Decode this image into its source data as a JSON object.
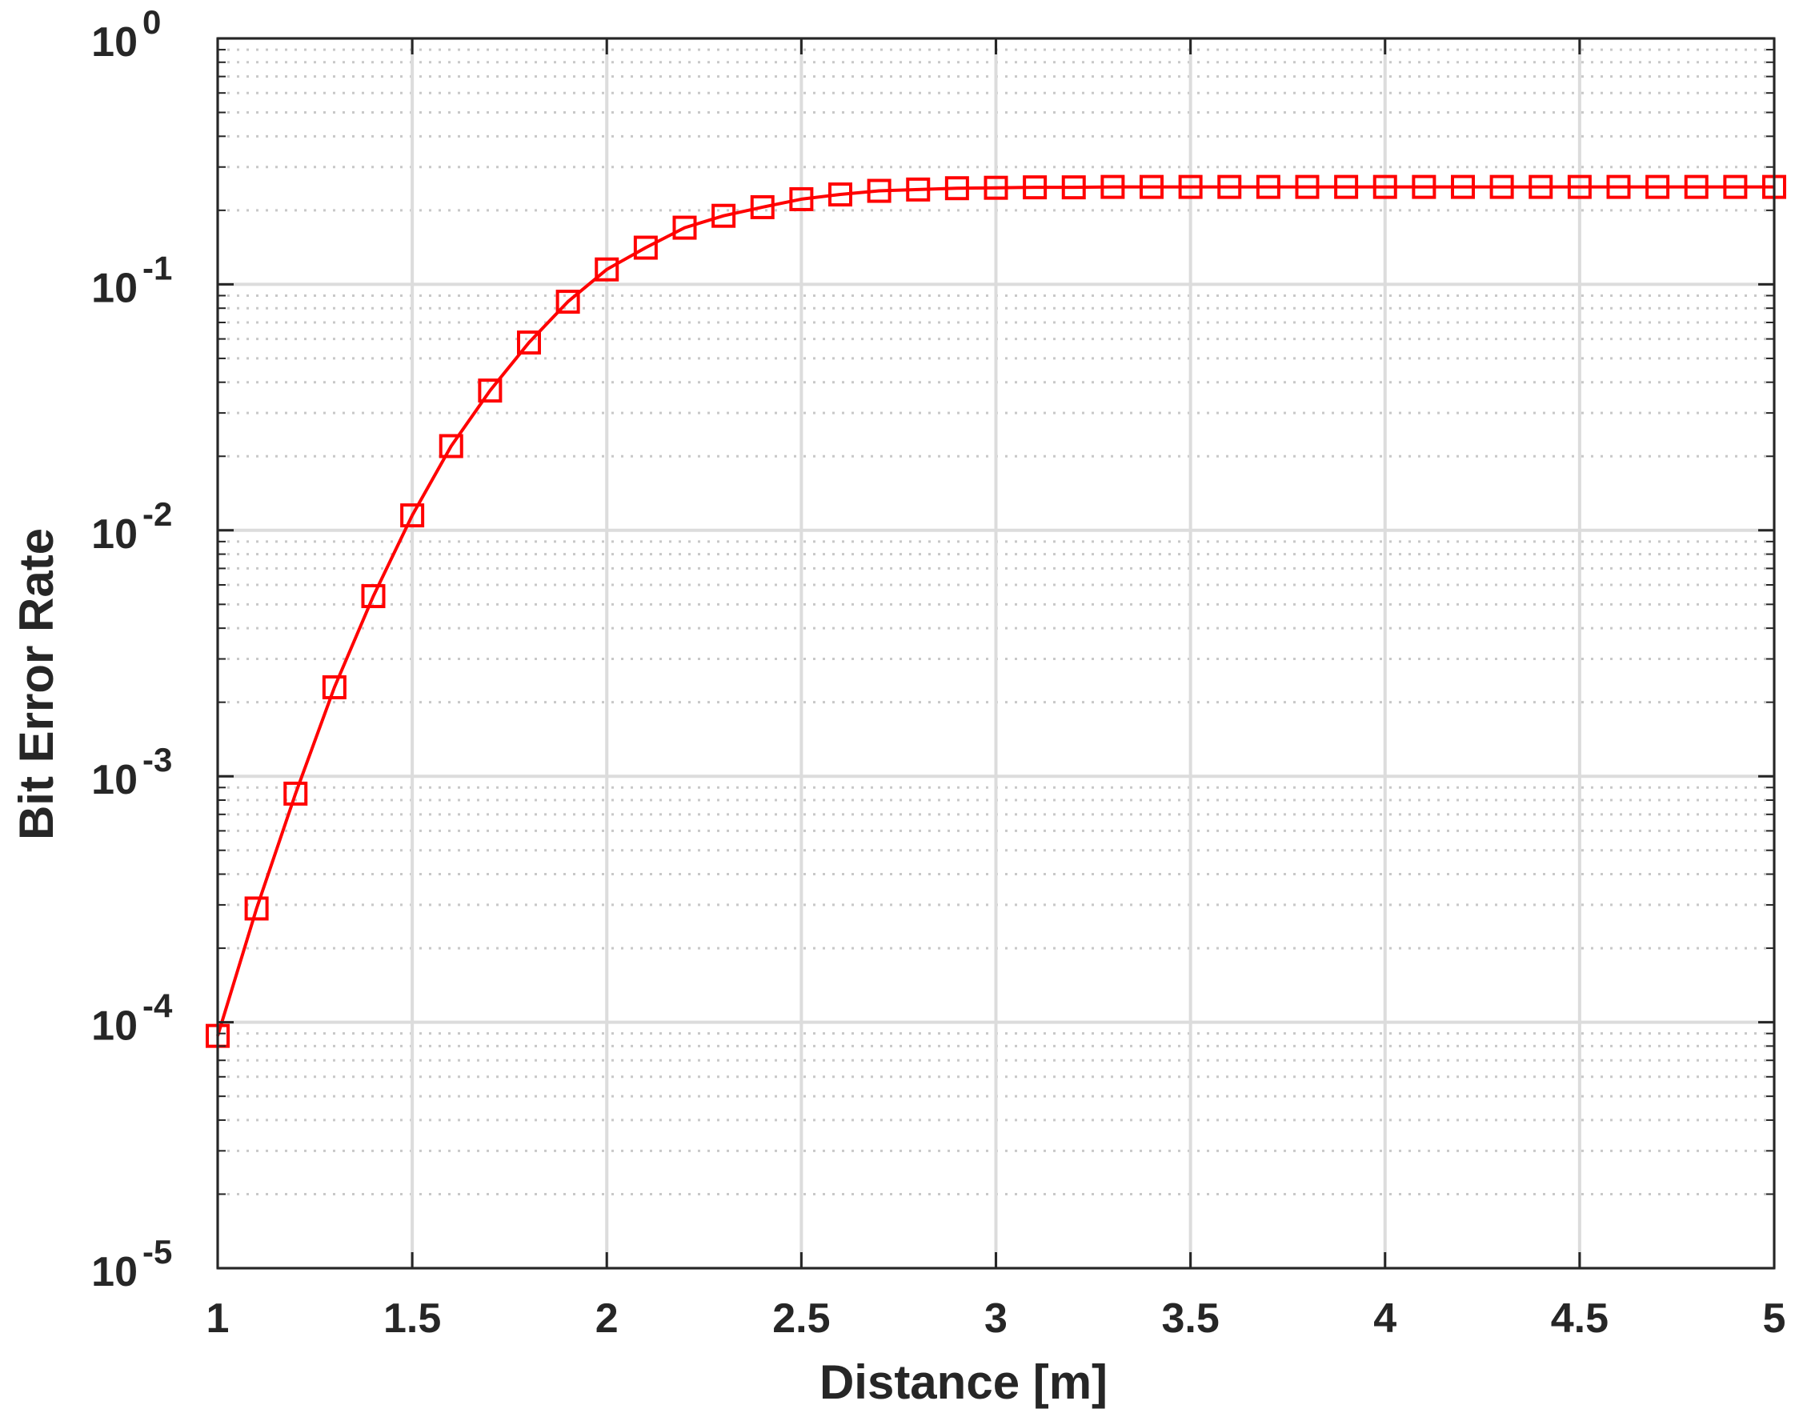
{
  "chart_data": {
    "type": "line",
    "title": "",
    "xlabel": "Distance [m]",
    "ylabel": "Bit Error Rate",
    "xlim": [
      1,
      5
    ],
    "ylim": [
      1e-05,
      1
    ],
    "yscale": "log",
    "grid": true,
    "minor_grid": true,
    "x_ticks": [
      1,
      1.5,
      2,
      2.5,
      3,
      3.5,
      4,
      4.5,
      5
    ],
    "x_tick_labels": [
      "1",
      "1.5",
      "2",
      "2.5",
      "3",
      "3.5",
      "4",
      "4.5",
      "5"
    ],
    "y_ticks": [
      1e-05,
      0.0001,
      0.001,
      0.01,
      0.1,
      1
    ],
    "y_tick_labels": [
      {
        "base": "10",
        "exp": "-5"
      },
      {
        "base": "10",
        "exp": "-4"
      },
      {
        "base": "10",
        "exp": "-3"
      },
      {
        "base": "10",
        "exp": "-2"
      },
      {
        "base": "10",
        "exp": "-1"
      },
      {
        "base": "10",
        "exp": "0"
      }
    ],
    "series": [
      {
        "color": "#ff0000",
        "marker": "square",
        "x": [
          1.0,
          1.1,
          1.2,
          1.3,
          1.4,
          1.5,
          1.6,
          1.7,
          1.8,
          1.9,
          2.0,
          2.1,
          2.2,
          2.3,
          2.4,
          2.5,
          2.6,
          2.7,
          2.8,
          2.9,
          3.0,
          3.1,
          3.2,
          3.3,
          3.4,
          3.5,
          3.6,
          3.7,
          3.8,
          3.9,
          4.0,
          4.1,
          4.2,
          4.3,
          4.4,
          4.5,
          4.6,
          4.7,
          4.8,
          4.9,
          5.0
        ],
        "y": [
          8.8e-05,
          0.00029,
          0.00085,
          0.0023,
          0.0054,
          0.0115,
          0.022,
          0.037,
          0.058,
          0.085,
          0.115,
          0.141,
          0.17,
          0.19,
          0.206,
          0.222,
          0.232,
          0.24,
          0.243,
          0.246,
          0.247,
          0.248,
          0.248,
          0.249,
          0.249,
          0.249,
          0.249,
          0.249,
          0.249,
          0.249,
          0.249,
          0.249,
          0.249,
          0.249,
          0.249,
          0.249,
          0.249,
          0.249,
          0.249,
          0.249,
          0.249
        ]
      }
    ]
  }
}
